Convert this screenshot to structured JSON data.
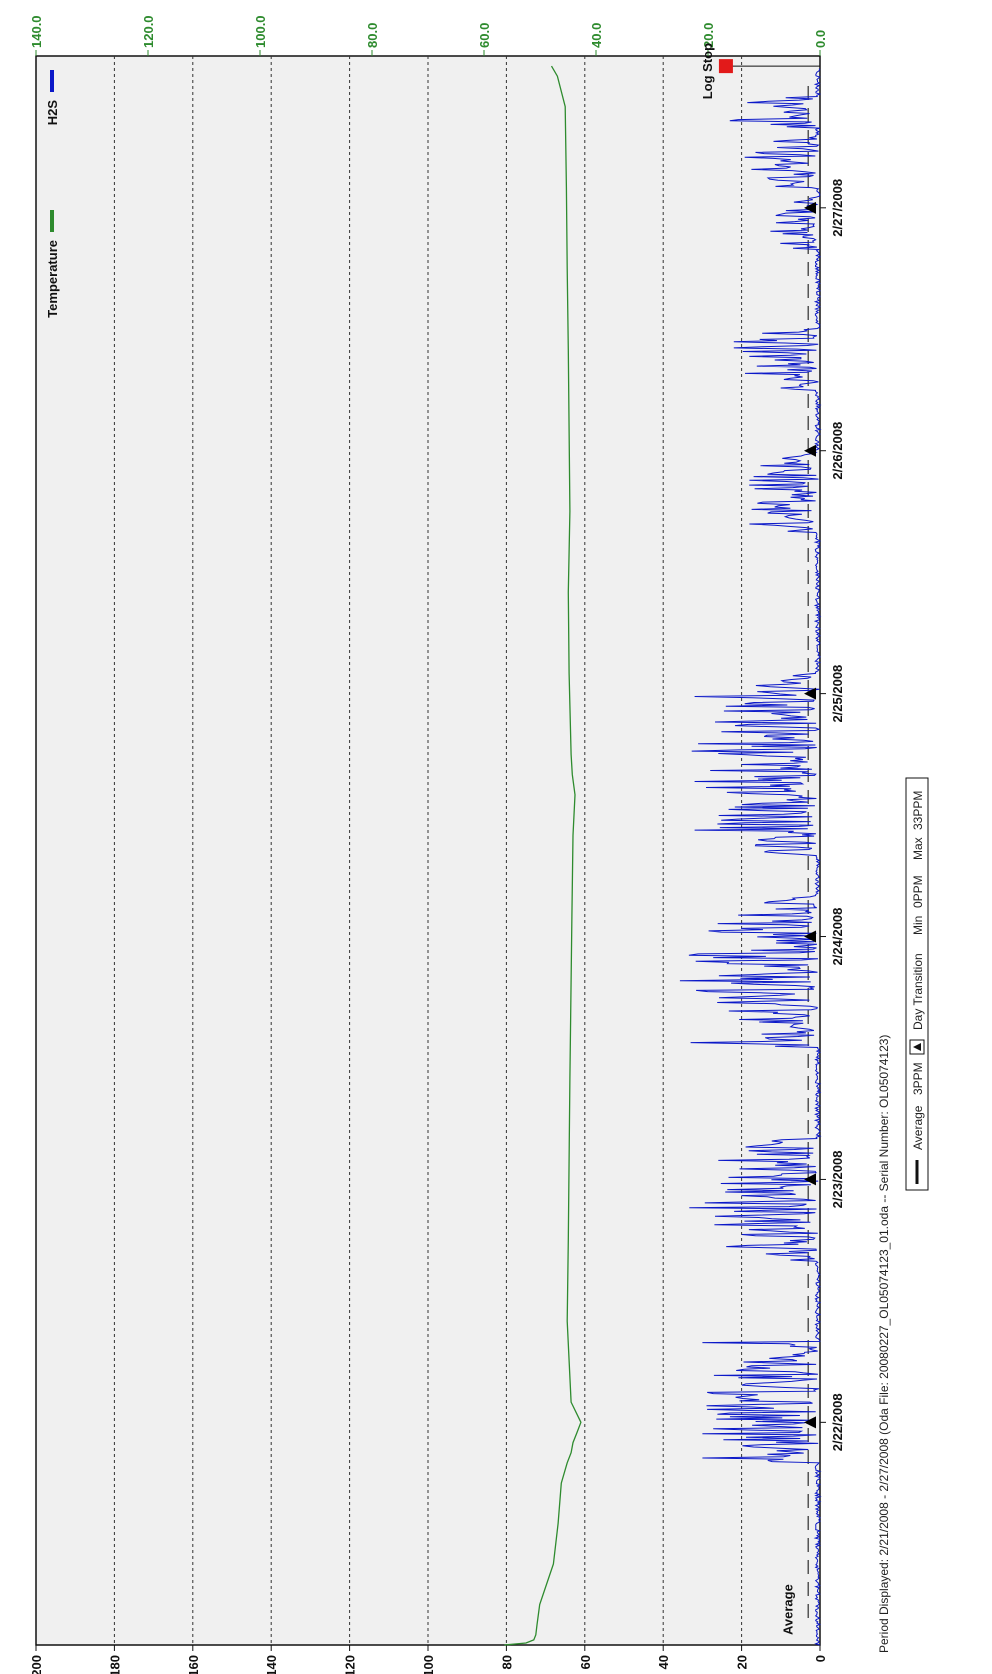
{
  "chart_data": {
    "type": "line",
    "orientation": "rotated-90-clockwise",
    "colors": {
      "h2s": "#0b18c8",
      "temperature": "#2e8b2e",
      "left_axis": "#111111",
      "right_axis": "#2e8b2e",
      "log_stop_marker": "#e21a1a",
      "plot_background": "#f0f0f0",
      "day_marker": "#000000"
    },
    "axes": {
      "left": {
        "ylim": [
          0,
          200
        ],
        "ticks": [
          0,
          20,
          40,
          60,
          80,
          100,
          120,
          140,
          160,
          180,
          200
        ],
        "tick_labels": [
          "0",
          "20",
          "40",
          "60",
          "80",
          "100",
          "120",
          "140",
          "160",
          "180",
          "200"
        ]
      },
      "right": {
        "ylim": [
          0,
          140
        ],
        "ticks": [
          0,
          20,
          40,
          60,
          80,
          100,
          120,
          140
        ],
        "tick_labels": [
          "0.0",
          "20.0",
          "40.0",
          "60.0",
          "80.0",
          "100.0",
          "120.0",
          "140.0"
        ]
      },
      "x": {
        "start": "2/21/2008 02:00",
        "end": "2/27/2008 15:00",
        "day_transitions": [
          "2/22/2008",
          "2/23/2008",
          "2/24/2008",
          "2/25/2008",
          "2/26/2008",
          "2/27/2008"
        ],
        "tick_labels": [
          "2/22/2008",
          "2/23/2008",
          "2/24/2008",
          "2/25/2008",
          "2/26/2008",
          "2/27/2008"
        ]
      },
      "grid": true
    },
    "legend": {
      "placement": "top-left",
      "entries": [
        {
          "name": "H2S",
          "color": "#0b18c8"
        },
        {
          "name": "Temperature",
          "color": "#2e8b2e"
        }
      ]
    },
    "series": [
      {
        "name": "H2S",
        "axis": "left",
        "style": "spiky",
        "bursts": [
          {
            "start_h": 18,
            "end_h": 30,
            "peak": 30
          },
          {
            "start_h": 38,
            "end_h": 50,
            "peak": 33
          },
          {
            "start_h": 59,
            "end_h": 74,
            "peak": 33
          },
          {
            "start_h": 78,
            "end_h": 96,
            "peak": 32
          },
          {
            "start_h": 110,
            "end_h": 118,
            "peak": 18
          },
          {
            "start_h": 124,
            "end_h": 130,
            "peak": 22
          },
          {
            "start_h": 138,
            "end_h": 143,
            "peak": 13
          },
          {
            "start_h": 144,
            "end_h": 149,
            "peak": 20
          },
          {
            "start_h": 150,
            "end_h": 153,
            "peak": 23
          }
        ]
      },
      {
        "name": "Temperature",
        "axis": "left",
        "x_hours": [
          0,
          0.2,
          0.5,
          1,
          2,
          4,
          8,
          12,
          16,
          18,
          19,
          20,
          21,
          22,
          24,
          32,
          40,
          56,
          72,
          80,
          84,
          86,
          88,
          96,
          104,
          108,
          112,
          128,
          136,
          144,
          152,
          155,
          156
        ],
        "values": [
          80.5,
          75,
          73,
          72.5,
          72.2,
          71.5,
          68,
          66.8,
          66,
          64.5,
          63.5,
          63,
          62,
          61,
          63.5,
          64.5,
          64.2,
          63.8,
          63.3,
          63,
          62.5,
          63.2,
          63.5,
          64,
          64.2,
          64,
          63.8,
          64.2,
          64.5,
          64.7,
          65,
          67,
          68.5
        ]
      }
    ],
    "annotations": [
      {
        "text": "Average",
        "x_hours": 0,
        "y": 5
      },
      {
        "text": "Log Stop",
        "x_hours": 156,
        "y": 24,
        "marker": "square"
      }
    ],
    "footer": {
      "period": "Period Displayed: 2/21/2008 - 2/27/2008  (Oda File: 20080227_OL05074123_01.oda  --  Serial Number: OL05074123)",
      "average_label": "Average",
      "average_value": "3PPM",
      "day_transition_label": "Day Transition",
      "min_label": "Min",
      "min_value": "0PPM",
      "max_label": "Max",
      "max_value": "33PPM"
    },
    "average_line_value": 3
  }
}
